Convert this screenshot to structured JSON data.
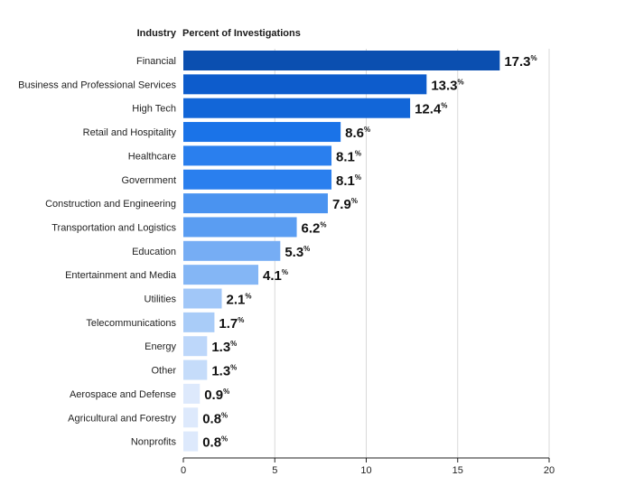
{
  "header": {
    "category_label": "Industry",
    "value_label": "Percent of Investigations"
  },
  "chart_data": {
    "type": "bar",
    "orientation": "horizontal",
    "categories": [
      "Financial",
      "Business and Professional Services",
      "High Tech",
      "Retail and Hospitality",
      "Healthcare",
      "Government",
      "Construction and Engineering",
      "Transportation and Logistics",
      "Education",
      "Entertainment and Media",
      "Utilities",
      "Telecommunications",
      "Energy",
      "Other",
      "Aerospace and Defense",
      "Agricultural and Forestry",
      "Nonprofits"
    ],
    "values": [
      17.3,
      13.3,
      12.4,
      8.6,
      8.1,
      8.1,
      7.9,
      6.2,
      5.3,
      4.1,
      2.1,
      1.7,
      1.3,
      1.3,
      0.9,
      0.8,
      0.8
    ],
    "value_labels": [
      "17.3",
      "13.3",
      "12.4",
      "8.6",
      "8.1",
      "8.1",
      "7.9",
      "6.2",
      "5.3",
      "4.1",
      "2.1",
      "1.7",
      "1.3",
      "1.3",
      "0.9",
      "0.8",
      "0.8"
    ],
    "value_suffix": "%",
    "bar_colors": [
      "#0b4fb0",
      "#0d5ccc",
      "#1266d8",
      "#1a73e8",
      "#2a7fee",
      "#2a7fee",
      "#4a93f0",
      "#5a9df2",
      "#76adf4",
      "#84b6f5",
      "#a1c7f8",
      "#a9ccf8",
      "#bdd7fa",
      "#c5dcfa",
      "#dde9fc",
      "#dde9fc",
      "#dde9fc"
    ],
    "x_ticks": [
      "0",
      "5",
      "10",
      "15",
      "20"
    ],
    "xlim": [
      0,
      20
    ],
    "xlabel": "",
    "ylabel": "Industry",
    "grid": "vertical",
    "legend": "none"
  }
}
